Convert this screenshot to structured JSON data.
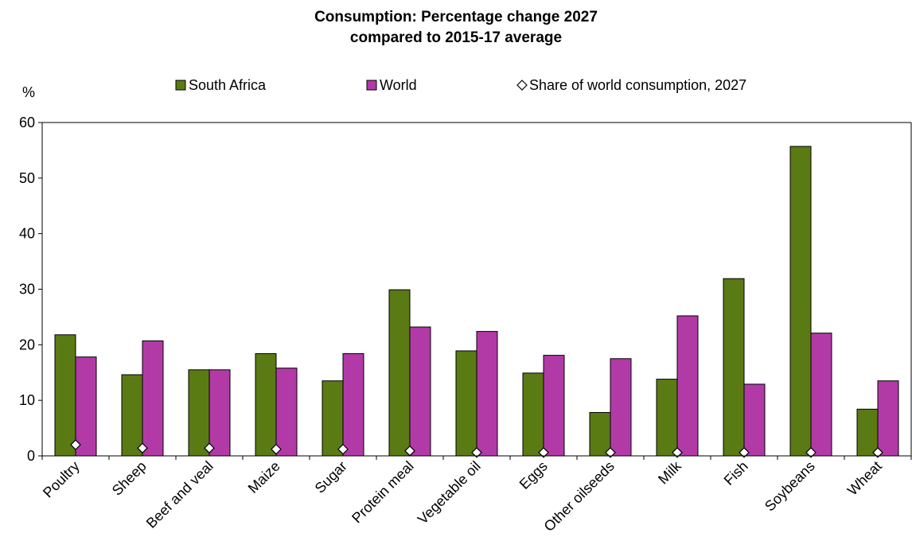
{
  "chart_data": {
    "type": "bar",
    "title_lines": [
      "Consumption: Percentage change 2027",
      "compared to 2015-17 average"
    ],
    "ylabel": "%",
    "ylim": [
      0,
      60
    ],
    "yticks": [
      0,
      10,
      20,
      30,
      40,
      50,
      60
    ],
    "categories": [
      "Poultry",
      "Sheep",
      "Beef and veal",
      "Maize",
      "Sugar",
      "Protein meal",
      "Vegetable oil",
      "Eggs",
      "Other oilseeds",
      "Milk",
      "Fish",
      "Soybeans",
      "Wheat"
    ],
    "series": [
      {
        "name": "South Africa",
        "color": "#5a7a14",
        "values": [
          21.8,
          14.6,
          15.5,
          18.4,
          13.5,
          29.9,
          18.9,
          14.9,
          7.8,
          13.8,
          31.9,
          55.7,
          8.4
        ]
      },
      {
        "name": "World",
        "color": "#b23aa7",
        "values": [
          17.8,
          20.7,
          15.5,
          15.8,
          18.4,
          23.2,
          22.4,
          18.1,
          17.5,
          25.2,
          12.9,
          22.1,
          13.5
        ]
      }
    ],
    "markers": {
      "name": "Share of world consumption, 2027",
      "symbol": "diamond",
      "values": [
        2.0,
        1.4,
        1.4,
        1.2,
        1.2,
        0.9,
        0.6,
        0.6,
        0.6,
        0.6,
        0.6,
        0.6,
        0.6
      ]
    },
    "grid": false,
    "legend_position": "top"
  }
}
